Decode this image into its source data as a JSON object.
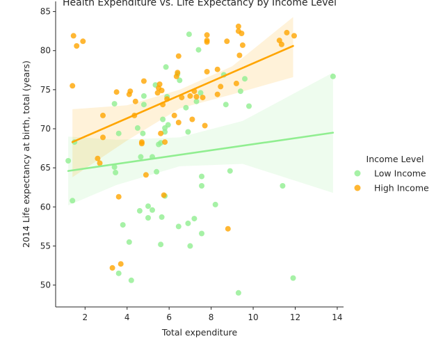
{
  "chart_data": {
    "type": "scatter",
    "title": "Health Expenditure vs. Life Expectancy by Income Level",
    "xlabel": "Total expenditure",
    "ylabel": "2014 Life expectancy at birth, total (years)",
    "xlim": [
      0.6,
      14.3
    ],
    "ylim": [
      47.2,
      86.3
    ],
    "x_ticks": [
      2,
      4,
      6,
      8,
      10,
      12,
      14
    ],
    "y_ticks": [
      50,
      55,
      60,
      65,
      70,
      75,
      80,
      85
    ],
    "grid": false,
    "legend": {
      "title": "Income Level",
      "placement": "right"
    },
    "series": [
      {
        "name": "Low Income",
        "color": "#90ee90",
        "fit": {
          "x": [
            1.2,
            13.8
          ],
          "y": [
            64.6,
            69.5
          ]
        },
        "band": {
          "x": [
            1.2,
            3.5,
            6.5,
            9.5,
            13.8
          ],
          "upper": [
            69.0,
            68.6,
            68.9,
            71.0,
            77.2
          ],
          "lower": [
            60.2,
            62.8,
            65.2,
            65.5,
            61.8
          ]
        },
        "points": [
          [
            1.2,
            65.9
          ],
          [
            1.4,
            60.8
          ],
          [
            1.5,
            68.3
          ],
          [
            3.4,
            73.2
          ],
          [
            3.4,
            65.1
          ],
          [
            3.45,
            64.4
          ],
          [
            3.6,
            69.4
          ],
          [
            3.6,
            51.5
          ],
          [
            3.8,
            57.7
          ],
          [
            4.1,
            55.5
          ],
          [
            4.2,
            50.6
          ],
          [
            4.5,
            70.1
          ],
          [
            4.6,
            59.5
          ],
          [
            4.65,
            66.4
          ],
          [
            4.75,
            69.4
          ],
          [
            4.8,
            73.1
          ],
          [
            4.8,
            74.2
          ],
          [
            5.0,
            58.6
          ],
          [
            5.0,
            60.1
          ],
          [
            5.2,
            59.6
          ],
          [
            5.2,
            66.4
          ],
          [
            5.35,
            75.6
          ],
          [
            5.4,
            64.5
          ],
          [
            5.5,
            68.0
          ],
          [
            5.6,
            68.2
          ],
          [
            5.6,
            55.2
          ],
          [
            5.65,
            58.7
          ],
          [
            5.7,
            71.2
          ],
          [
            5.8,
            61.4
          ],
          [
            5.8,
            69.6
          ],
          [
            5.8,
            70.1
          ],
          [
            5.85,
            77.9
          ],
          [
            5.9,
            74.1
          ],
          [
            5.95,
            70.5
          ],
          [
            6.4,
            77.0
          ],
          [
            6.45,
            57.5
          ],
          [
            6.5,
            76.2
          ],
          [
            6.8,
            72.7
          ],
          [
            6.9,
            57.9
          ],
          [
            6.9,
            69.6
          ],
          [
            6.95,
            82.1
          ],
          [
            7.0,
            55.0
          ],
          [
            7.2,
            58.5
          ],
          [
            7.3,
            73.5
          ],
          [
            7.4,
            80.1
          ],
          [
            7.5,
            74.6
          ],
          [
            7.55,
            63.9
          ],
          [
            7.55,
            62.7
          ],
          [
            7.55,
            56.6
          ],
          [
            8.2,
            60.3
          ],
          [
            8.6,
            76.9
          ],
          [
            8.7,
            73.1
          ],
          [
            8.9,
            64.6
          ],
          [
            9.3,
            49.0
          ],
          [
            9.4,
            74.8
          ],
          [
            9.6,
            76.4
          ],
          [
            9.8,
            72.9
          ],
          [
            11.4,
            62.7
          ],
          [
            11.9,
            50.9
          ],
          [
            13.8,
            76.7
          ]
        ]
      },
      {
        "name": "High Income",
        "color": "#ffa500",
        "fit": {
          "x": [
            1.4,
            11.9
          ],
          "y": [
            68.3,
            80.6
          ]
        },
        "band": {
          "x": [
            1.4,
            4.0,
            6.5,
            9.0,
            11.9
          ],
          "upper": [
            72.5,
            73.0,
            75.0,
            78.0,
            84.3
          ],
          "lower": [
            63.8,
            68.5,
            72.6,
            74.4,
            76.6
          ]
        },
        "points": [
          [
            1.4,
            75.5
          ],
          [
            1.45,
            81.9
          ],
          [
            1.6,
            80.6
          ],
          [
            1.9,
            81.2
          ],
          [
            2.6,
            66.2
          ],
          [
            2.7,
            65.6
          ],
          [
            2.85,
            71.7
          ],
          [
            2.85,
            68.9
          ],
          [
            3.3,
            52.2
          ],
          [
            3.5,
            74.7
          ],
          [
            3.6,
            61.3
          ],
          [
            3.7,
            52.7
          ],
          [
            4.1,
            74.4
          ],
          [
            4.15,
            74.8
          ],
          [
            4.35,
            71.7
          ],
          [
            4.4,
            73.5
          ],
          [
            4.7,
            68.3
          ],
          [
            4.7,
            68.1
          ],
          [
            4.8,
            76.1
          ],
          [
            4.9,
            64.1
          ],
          [
            5.45,
            74.6
          ],
          [
            5.5,
            75.2
          ],
          [
            5.55,
            75.7
          ],
          [
            5.6,
            69.4
          ],
          [
            5.65,
            74.9
          ],
          [
            5.7,
            73.1
          ],
          [
            5.75,
            61.5
          ],
          [
            5.8,
            68.3
          ],
          [
            5.9,
            73.8
          ],
          [
            6.25,
            71.7
          ],
          [
            6.35,
            76.7
          ],
          [
            6.4,
            77.2
          ],
          [
            6.45,
            79.3
          ],
          [
            6.45,
            70.8
          ],
          [
            6.6,
            74.0
          ],
          [
            7.0,
            74.2
          ],
          [
            7.1,
            71.2
          ],
          [
            7.2,
            74.8
          ],
          [
            7.3,
            74.1
          ],
          [
            7.6,
            74.0
          ],
          [
            7.7,
            70.4
          ],
          [
            7.8,
            81.3
          ],
          [
            7.8,
            81.1
          ],
          [
            7.8,
            82.0
          ],
          [
            7.8,
            77.3
          ],
          [
            8.3,
            77.6
          ],
          [
            8.3,
            74.4
          ],
          [
            8.45,
            75.4
          ],
          [
            8.75,
            81.2
          ],
          [
            8.8,
            57.2
          ],
          [
            9.2,
            75.8
          ],
          [
            9.3,
            82.5
          ],
          [
            9.3,
            83.1
          ],
          [
            9.35,
            79.4
          ],
          [
            9.45,
            82.2
          ],
          [
            9.5,
            80.7
          ],
          [
            11.25,
            81.3
          ],
          [
            11.35,
            80.8
          ],
          [
            11.6,
            82.3
          ],
          [
            11.95,
            81.9
          ]
        ]
      }
    ]
  }
}
